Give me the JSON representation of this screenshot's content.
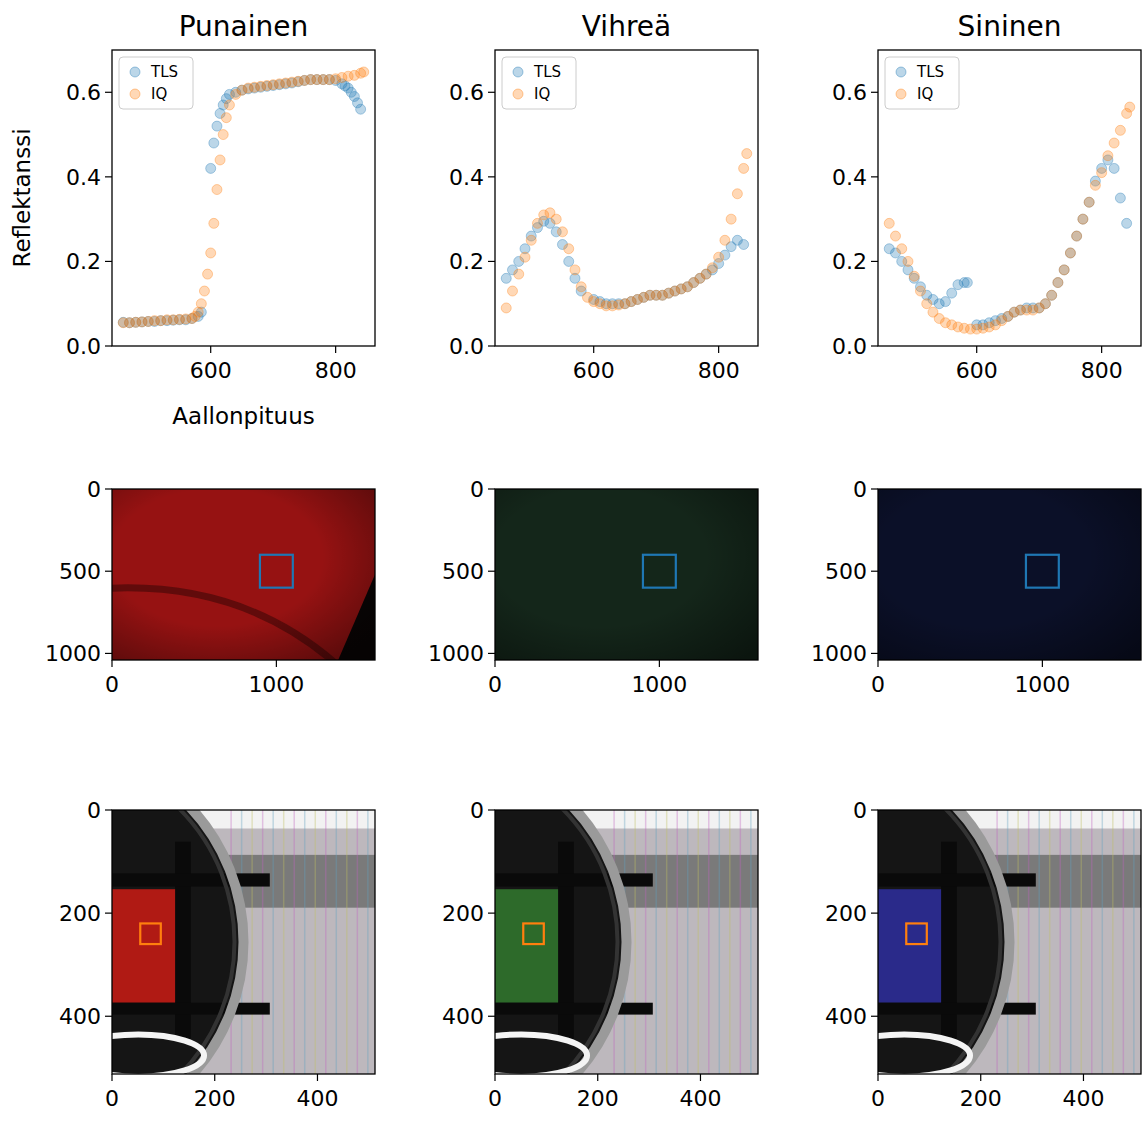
{
  "chart_data": [
    {
      "type": "scatter",
      "title": "Punainen",
      "x_label": "Aallonpituus",
      "y_label": "Reflektanssi",
      "xlim": [
        442,
        863
      ],
      "ylim": [
        0,
        0.7
      ],
      "xticks": [
        600,
        800
      ],
      "yticks": [
        {
          "value": 0,
          "label": "0.0"
        },
        {
          "value": 0.2,
          "label": "0.2"
        },
        {
          "value": 0.4,
          "label": "0.4"
        },
        {
          "value": 0.6,
          "label": "0.6"
        }
      ],
      "legend": "upper left",
      "series": [
        {
          "name": "TLS",
          "color": "#1f77b4",
          "marker": "circle",
          "x": [
            460,
            470,
            480,
            490,
            500,
            510,
            520,
            530,
            540,
            550,
            560,
            570,
            580,
            585,
            600,
            605,
            610,
            615,
            620,
            625,
            630,
            640,
            650,
            660,
            670,
            680,
            690,
            700,
            710,
            720,
            730,
            740,
            750,
            760,
            770,
            780,
            790,
            800,
            810,
            815,
            820,
            825,
            830,
            835,
            840
          ],
          "values": [
            0.056,
            0.055,
            0.056,
            0.057,
            0.058,
            0.058,
            0.06,
            0.06,
            0.061,
            0.062,
            0.062,
            0.065,
            0.07,
            0.08,
            0.42,
            0.48,
            0.52,
            0.55,
            0.57,
            0.585,
            0.595,
            0.6,
            0.605,
            0.608,
            0.61,
            0.612,
            0.614,
            0.616,
            0.618,
            0.62,
            0.622,
            0.625,
            0.628,
            0.63,
            0.63,
            0.63,
            0.63,
            0.628,
            0.62,
            0.615,
            0.61,
            0.6,
            0.59,
            0.575,
            0.56
          ]
        },
        {
          "name": "IQ",
          "color": "#ff7f0e",
          "marker": "circle",
          "x": [
            460,
            470,
            480,
            490,
            500,
            510,
            520,
            530,
            540,
            550,
            560,
            570,
            575,
            580,
            585,
            590,
            595,
            600,
            605,
            610,
            615,
            620,
            625,
            630,
            640,
            650,
            660,
            670,
            680,
            690,
            700,
            710,
            720,
            730,
            740,
            750,
            760,
            770,
            780,
            790,
            800,
            810,
            820,
            830,
            840,
            845
          ],
          "values": [
            0.055,
            0.055,
            0.056,
            0.057,
            0.058,
            0.06,
            0.06,
            0.062,
            0.062,
            0.063,
            0.064,
            0.065,
            0.07,
            0.08,
            0.1,
            0.13,
            0.17,
            0.22,
            0.29,
            0.37,
            0.44,
            0.5,
            0.54,
            0.57,
            0.595,
            0.605,
            0.61,
            0.612,
            0.614,
            0.616,
            0.618,
            0.62,
            0.622,
            0.624,
            0.626,
            0.628,
            0.63,
            0.63,
            0.63,
            0.63,
            0.632,
            0.635,
            0.638,
            0.64,
            0.645,
            0.648
          ]
        }
      ]
    },
    {
      "type": "scatter",
      "title": "Vihreä",
      "xlim": [
        442,
        863
      ],
      "ylim": [
        0,
        0.7
      ],
      "xticks": [
        600,
        800
      ],
      "yticks": [
        {
          "value": 0,
          "label": "0.0"
        },
        {
          "value": 0.2,
          "label": "0.2"
        },
        {
          "value": 0.4,
          "label": "0.4"
        },
        {
          "value": 0.6,
          "label": "0.6"
        }
      ],
      "legend": "upper left",
      "series": [
        {
          "name": "TLS",
          "color": "#1f77b4",
          "marker": "circle",
          "x": [
            460,
            470,
            480,
            490,
            500,
            510,
            520,
            530,
            540,
            550,
            560,
            570,
            580,
            600,
            610,
            620,
            630,
            640,
            650,
            660,
            670,
            680,
            690,
            700,
            710,
            720,
            730,
            740,
            750,
            760,
            770,
            780,
            790,
            800,
            810,
            820,
            830,
            840
          ],
          "values": [
            0.16,
            0.18,
            0.2,
            0.23,
            0.26,
            0.28,
            0.295,
            0.29,
            0.27,
            0.24,
            0.2,
            0.16,
            0.13,
            0.11,
            0.105,
            0.1,
            0.1,
            0.1,
            0.1,
            0.105,
            0.11,
            0.115,
            0.12,
            0.12,
            0.12,
            0.125,
            0.13,
            0.135,
            0.14,
            0.15,
            0.16,
            0.17,
            0.18,
            0.195,
            0.215,
            0.235,
            0.25,
            0.24
          ]
        },
        {
          "name": "IQ",
          "color": "#ff7f0e",
          "marker": "circle",
          "x": [
            460,
            470,
            480,
            490,
            500,
            510,
            520,
            530,
            540,
            550,
            560,
            570,
            580,
            590,
            600,
            610,
            620,
            630,
            640,
            650,
            660,
            670,
            680,
            690,
            700,
            710,
            720,
            730,
            740,
            750,
            760,
            770,
            780,
            790,
            800,
            810,
            820,
            830,
            840,
            845
          ],
          "values": [
            0.09,
            0.13,
            0.17,
            0.21,
            0.25,
            0.29,
            0.31,
            0.315,
            0.3,
            0.27,
            0.23,
            0.18,
            0.14,
            0.115,
            0.105,
            0.1,
            0.095,
            0.095,
            0.097,
            0.1,
            0.105,
            0.11,
            0.115,
            0.12,
            0.12,
            0.12,
            0.125,
            0.13,
            0.135,
            0.14,
            0.15,
            0.16,
            0.17,
            0.185,
            0.21,
            0.25,
            0.3,
            0.36,
            0.42,
            0.455
          ]
        }
      ]
    },
    {
      "type": "scatter",
      "title": "Sininen",
      "xlim": [
        442,
        863
      ],
      "ylim": [
        0,
        0.7
      ],
      "xticks": [
        600,
        800
      ],
      "yticks": [
        {
          "value": 0,
          "label": "0.0"
        },
        {
          "value": 0.2,
          "label": "0.2"
        },
        {
          "value": 0.4,
          "label": "0.4"
        },
        {
          "value": 0.6,
          "label": "0.6"
        }
      ],
      "legend": "upper left",
      "series": [
        {
          "name": "TLS",
          "color": "#1f77b4",
          "marker": "circle",
          "x": [
            460,
            470,
            480,
            490,
            500,
            510,
            520,
            530,
            540,
            550,
            560,
            570,
            580,
            585,
            600,
            610,
            620,
            630,
            640,
            650,
            660,
            670,
            680,
            690,
            700,
            710,
            720,
            730,
            740,
            750,
            760,
            770,
            780,
            790,
            800,
            810,
            820,
            830,
            840
          ],
          "values": [
            0.23,
            0.22,
            0.2,
            0.18,
            0.16,
            0.14,
            0.12,
            0.11,
            0.1,
            0.105,
            0.125,
            0.145,
            0.15,
            0.15,
            0.05,
            0.05,
            0.055,
            0.06,
            0.065,
            0.07,
            0.08,
            0.085,
            0.09,
            0.09,
            0.09,
            0.1,
            0.12,
            0.15,
            0.18,
            0.22,
            0.26,
            0.3,
            0.34,
            0.39,
            0.42,
            0.44,
            0.42,
            0.35,
            0.29
          ]
        },
        {
          "name": "IQ",
          "color": "#ff7f0e",
          "marker": "circle",
          "x": [
            460,
            470,
            480,
            490,
            500,
            510,
            520,
            530,
            540,
            550,
            560,
            570,
            580,
            590,
            600,
            610,
            620,
            630,
            640,
            650,
            660,
            670,
            680,
            690,
            700,
            710,
            720,
            730,
            740,
            750,
            760,
            770,
            780,
            790,
            800,
            810,
            820,
            830,
            840,
            845
          ],
          "values": [
            0.29,
            0.26,
            0.23,
            0.2,
            0.165,
            0.13,
            0.1,
            0.08,
            0.065,
            0.055,
            0.05,
            0.045,
            0.042,
            0.04,
            0.04,
            0.042,
            0.045,
            0.05,
            0.06,
            0.07,
            0.08,
            0.085,
            0.085,
            0.085,
            0.09,
            0.1,
            0.12,
            0.15,
            0.18,
            0.22,
            0.26,
            0.3,
            0.34,
            0.38,
            0.41,
            0.45,
            0.48,
            0.51,
            0.55,
            0.565
          ]
        }
      ]
    },
    {
      "type": "image",
      "color": "#961212",
      "xlim": [
        0,
        1600
      ],
      "ylim": [
        1040,
        0
      ],
      "xticks": [
        0,
        1000
      ],
      "yticks": [
        0,
        500,
        1000
      ],
      "roi": {
        "x": 900,
        "y": 400,
        "width": 200,
        "height": 200,
        "color": "#1f77b4"
      }
    },
    {
      "type": "image",
      "color": "#14261a",
      "xlim": [
        0,
        1600
      ],
      "ylim": [
        1040,
        0
      ],
      "xticks": [
        0,
        1000
      ],
      "yticks": [
        0,
        500,
        1000
      ],
      "roi": {
        "x": 900,
        "y": 400,
        "width": 200,
        "height": 200,
        "color": "#1f77b4"
      }
    },
    {
      "type": "image",
      "color": "#0b1028",
      "xlim": [
        0,
        1600
      ],
      "ylim": [
        1040,
        0
      ],
      "xticks": [
        0,
        1000
      ],
      "yticks": [
        0,
        500,
        1000
      ],
      "roi": {
        "x": 900,
        "y": 400,
        "width": 200,
        "height": 200,
        "color": "#1f77b4"
      }
    },
    {
      "type": "image",
      "color": "#b01a14",
      "xlim": [
        0,
        512
      ],
      "ylim": [
        512,
        0
      ],
      "xticks": [
        0,
        200,
        400
      ],
      "yticks": [
        0,
        200,
        400
      ],
      "roi": {
        "x": 55,
        "y": 220,
        "width": 40,
        "height": 40,
        "color": "#ff7f0e"
      }
    },
    {
      "type": "image",
      "color": "#2d6a2a",
      "xlim": [
        0,
        512
      ],
      "ylim": [
        512,
        0
      ],
      "xticks": [
        0,
        200,
        400
      ],
      "yticks": [
        0,
        200,
        400
      ],
      "roi": {
        "x": 55,
        "y": 220,
        "width": 40,
        "height": 40,
        "color": "#ff7f0e"
      }
    },
    {
      "type": "image",
      "color": "#2a2a8a",
      "xlim": [
        0,
        512
      ],
      "ylim": [
        512,
        0
      ],
      "xticks": [
        0,
        200,
        400
      ],
      "yticks": [
        0,
        200,
        400
      ],
      "roi": {
        "x": 55,
        "y": 220,
        "width": 40,
        "height": 40,
        "color": "#ff7f0e"
      }
    }
  ]
}
